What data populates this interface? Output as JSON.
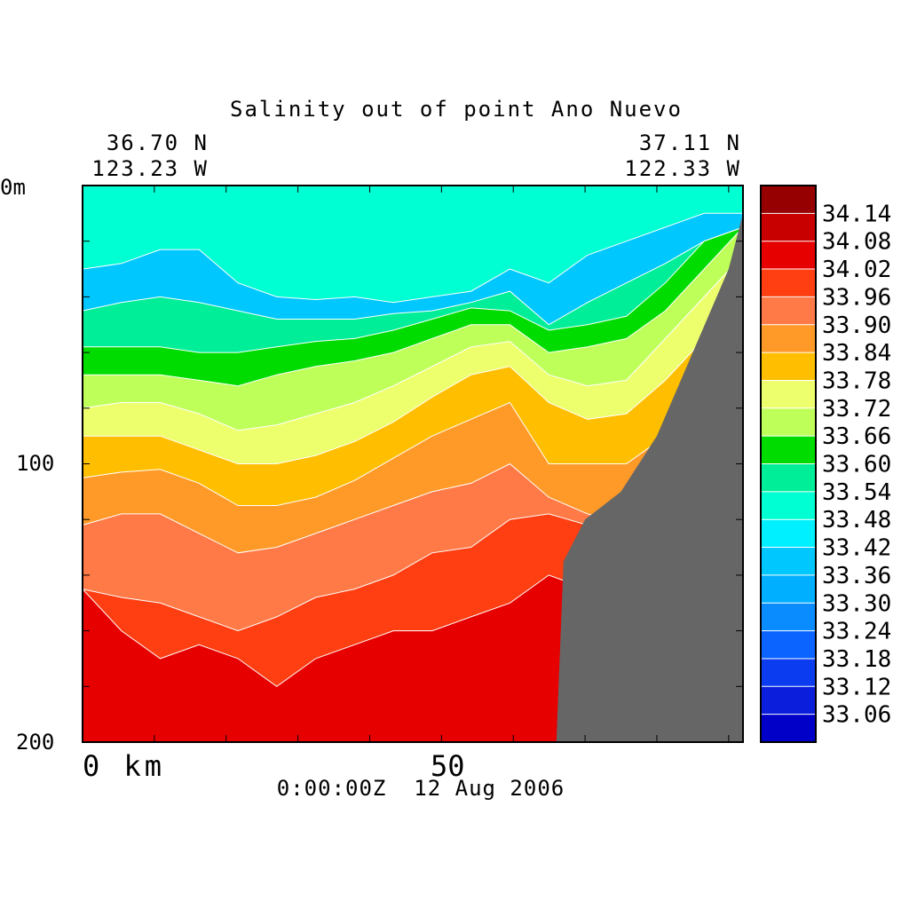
{
  "chart_data": {
    "type": "heatmap",
    "title": "Salinity out of point Ano Nuevo",
    "start_location": {
      "lat": "36.70 N",
      "lon": "123.23 W"
    },
    "end_location": {
      "lat": "37.11 N",
      "lon": "122.33 W"
    },
    "timestamp": "0:00:00Z  12 Aug 2006",
    "x_axis": {
      "ticks": [
        "0 km",
        "50"
      ],
      "range_km": [
        0,
        92
      ]
    },
    "y_axis": {
      "ticks": [
        "0m",
        "100",
        "200"
      ],
      "range_m": [
        0,
        200
      ],
      "inverted": true
    },
    "colorbar": {
      "levels": [
        33.06,
        33.12,
        33.18,
        33.24,
        33.3,
        33.36,
        33.42,
        33.48,
        33.54,
        33.6,
        33.66,
        33.72,
        33.78,
        33.84,
        33.9,
        33.96,
        34.02,
        34.08,
        34.14
      ],
      "labels": [
        "33.06",
        "33.12",
        "33.18",
        "33.24",
        "33.30",
        "33.36",
        "33.42",
        "33.48",
        "33.54",
        "33.60",
        "33.66",
        "33.72",
        "33.78",
        "33.84",
        "33.90",
        "33.96",
        "34.02",
        "34.08",
        "34.14"
      ],
      "colors": [
        "#0000c8",
        "#0a1edc",
        "#0b3cf0",
        "#0b64ff",
        "#0a8cff",
        "#00afff",
        "#00c8ff",
        "#00f0ff",
        "#00ffd2",
        "#00ee98",
        "#00dc00",
        "#bfff5a",
        "#eeff6e",
        "#ffbf00",
        "#ff9a28",
        "#ff7a46",
        "#ff3e12",
        "#e60000",
        "#c80000",
        "#960000"
      ]
    },
    "contours": [
      {
        "depth_m": [
          30,
          28,
          23,
          23,
          35,
          40,
          41,
          40,
          42,
          40,
          38,
          30,
          35,
          25,
          20,
          15,
          10,
          10
        ]
      },
      {
        "depth_m": [
          45,
          42,
          40,
          42,
          45,
          48,
          48,
          48,
          46,
          45,
          42,
          38,
          50,
          42,
          35,
          28,
          20,
          15
        ]
      },
      {
        "depth_m": [
          58,
          58,
          58,
          60,
          60,
          58,
          56,
          55,
          52,
          48,
          44,
          45,
          52,
          50,
          47,
          35,
          20,
          15
        ]
      },
      {
        "depth_m": [
          68,
          68,
          68,
          70,
          72,
          68,
          65,
          63,
          60,
          55,
          50,
          50,
          60,
          58,
          55,
          45,
          30,
          15
        ]
      },
      {
        "depth_m": [
          80,
          78,
          78,
          82,
          88,
          86,
          82,
          78,
          72,
          65,
          58,
          56,
          68,
          72,
          70,
          55,
          40,
          25
        ]
      },
      {
        "depth_m": [
          90,
          90,
          90,
          95,
          100,
          100,
          97,
          92,
          85,
          76,
          68,
          65,
          78,
          84,
          82,
          70,
          55,
          40
        ]
      },
      {
        "depth_m": [
          105,
          103,
          102,
          107,
          115,
          115,
          112,
          106,
          98,
          90,
          84,
          78,
          100,
          100,
          100,
          90,
          70,
          55
        ]
      },
      {
        "depth_m": [
          122,
          118,
          118,
          125,
          132,
          130,
          125,
          120,
          115,
          110,
          107,
          100,
          112,
          118,
          122,
          110,
          80,
          60
        ]
      },
      {
        "depth_m": [
          145,
          148,
          150,
          155,
          160,
          155,
          148,
          145,
          140,
          132,
          130,
          120,
          118,
          122,
          140,
          150,
          110,
          80
        ]
      },
      {
        "depth_m": [
          145,
          160,
          170,
          165,
          170,
          180,
          170,
          165,
          160,
          160,
          155,
          150,
          140,
          145,
          165,
          185,
          190,
          195
        ]
      },
      {
        "depth_m": [
          200,
          200,
          200,
          200,
          200,
          200,
          200,
          200,
          200,
          200,
          200,
          200,
          200,
          200,
          200,
          200,
          200,
          200
        ]
      }
    ],
    "seafloor_km": [
      66,
      67,
      70,
      75,
      80,
      90,
      92
    ],
    "seafloor_depth_m": [
      200,
      135,
      120,
      110,
      90,
      30,
      10
    ]
  }
}
